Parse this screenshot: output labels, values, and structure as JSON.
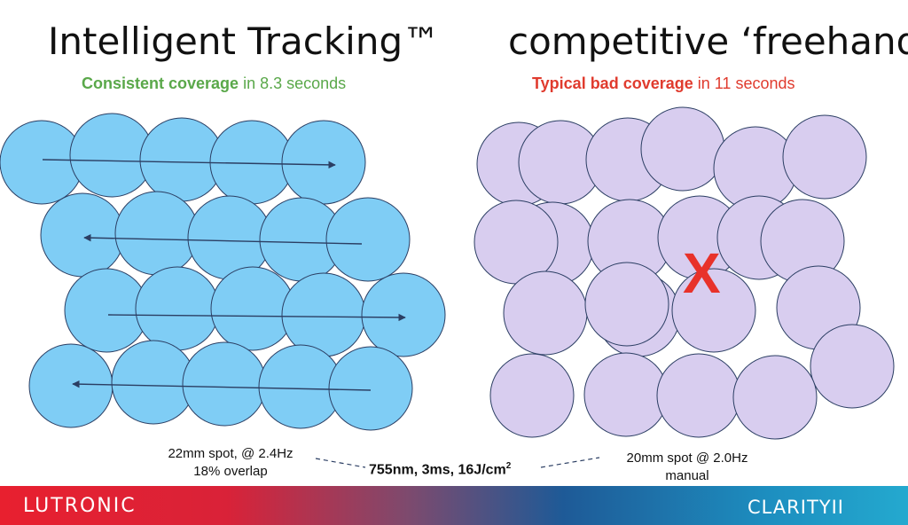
{
  "left": {
    "title": "Intelligent Tracking™",
    "subtitle_bold": "Consistent coverage",
    "subtitle_rest": " in 8.3 seconds",
    "note_line1": "22mm spot, @ 2.4Hz",
    "note_line2": "18% overlap"
  },
  "right": {
    "title": "competitive ‘freehand’",
    "subtitle_bold": "Typical bad coverage",
    "subtitle_rest": " in 11 seconds",
    "note_line1": "20mm spot @ 2.0Hz",
    "note_line2": "manual",
    "gap_mark": "X"
  },
  "center": {
    "text": "755nm, 3ms, 16J/cm",
    "superscript": "2"
  },
  "footer": {
    "logo_left": "LUTRONIC",
    "logo_right": "CLARITYII"
  },
  "colors": {
    "left_circle_fill": "#7fcdf5",
    "right_circle_fill": "#d8cdef",
    "circle_stroke": "#2b3e63",
    "arrow": "#2b3e63",
    "gap_mark": "#e8322a",
    "subtitle_green": "#5aa84a",
    "subtitle_red": "#e03b2e"
  }
}
